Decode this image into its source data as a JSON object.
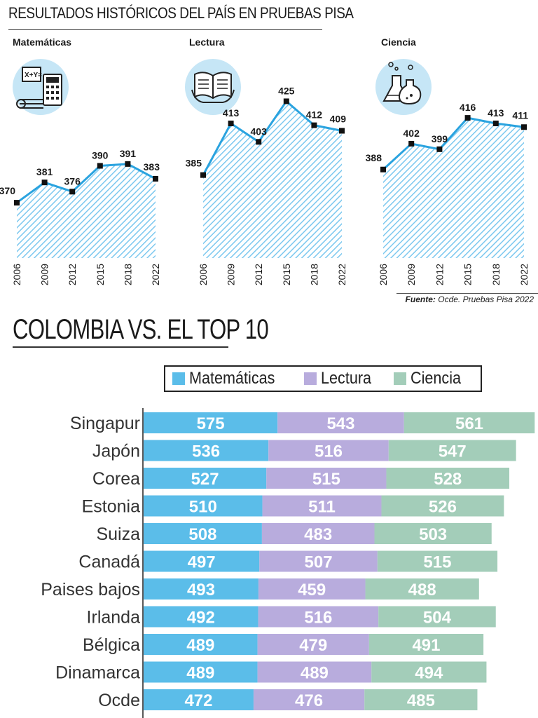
{
  "header": {
    "title": "RESULTADOS HISTÓRICOS DEL PAÍS EN PRUEBAS PISA"
  },
  "colors": {
    "line": "#2aa3df",
    "hatch": "#7cc8ef",
    "math": "#5bbde9",
    "reading": "#b8acdd",
    "science": "#a3cdb9"
  },
  "chart_data": [
    {
      "type": "area",
      "title": "Matemáticas",
      "icon": "calculator-icon",
      "x": [
        "2006",
        "2009",
        "2012",
        "2015",
        "2018",
        "2022"
      ],
      "values": [
        370,
        381,
        376,
        390,
        391,
        383
      ]
    },
    {
      "type": "area",
      "title": "Lectura",
      "icon": "open-book-icon",
      "x": [
        "2006",
        "2009",
        "2012",
        "2015",
        "2018",
        "2022"
      ],
      "values": [
        385,
        413,
        403,
        425,
        412,
        409
      ]
    },
    {
      "type": "area",
      "title": "Ciencia",
      "icon": "flask-icon",
      "x": [
        "2006",
        "2009",
        "2012",
        "2015",
        "2018",
        "2022"
      ],
      "values": [
        388,
        402,
        399,
        416,
        413,
        411
      ]
    },
    {
      "type": "bar",
      "title": "COLOMBIA VS. EL TOP 10",
      "stacked": true,
      "orientation": "horizontal",
      "categories": [
        "Singapur",
        "Japón",
        "Corea",
        "Estonia",
        "Suiza",
        "Canadá",
        "Paises bajos",
        "Irlanda",
        "Bélgica",
        "Dinamarca",
        "Ocde"
      ],
      "series": [
        {
          "name": "Matemáticas",
          "values": [
            575,
            536,
            527,
            510,
            508,
            497,
            493,
            492,
            489,
            489,
            472
          ]
        },
        {
          "name": "Lectura",
          "values": [
            543,
            516,
            515,
            511,
            483,
            507,
            459,
            516,
            479,
            489,
            476
          ]
        },
        {
          "name": "Ciencia",
          "values": [
            561,
            547,
            528,
            526,
            503,
            515,
            488,
            504,
            491,
            494,
            485
          ]
        }
      ]
    }
  ],
  "source": {
    "label": "Fuente:",
    "text": "Ocde. Pruebas Pisa 2022"
  }
}
